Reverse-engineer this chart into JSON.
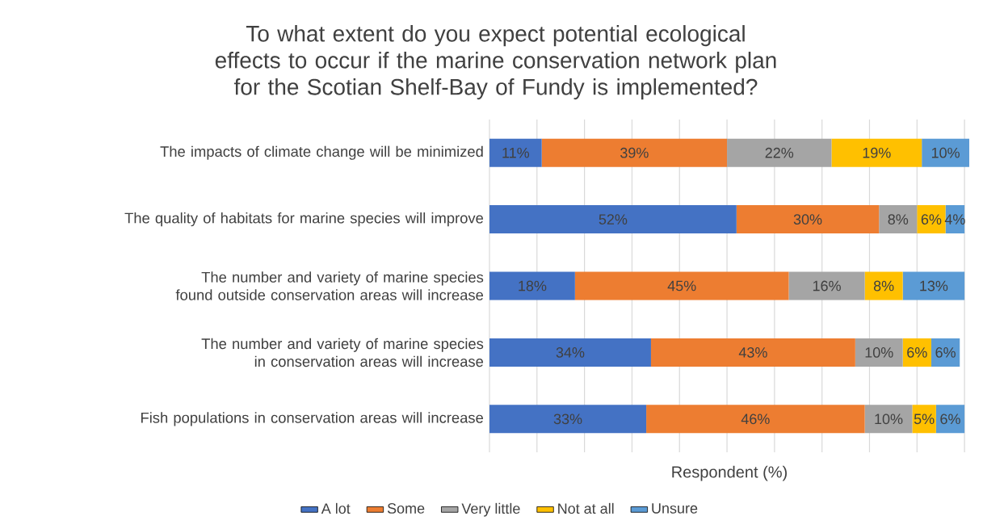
{
  "chart_data": {
    "type": "bar",
    "orientation": "horizontal",
    "stacked": true,
    "title": "To what extent do you expect potential ecological effects to occur if the marine conservation network plan for the Scotian Shelf-Bay of Fundy is implemented?",
    "xlabel": "Respondent (%)",
    "categories": [
      "The impacts of climate change will be minimized",
      "The quality of habitats for marine species will improve",
      "The number and variety of marine species found outside conservation areas will increase",
      "The number and variety of marine species in conservation areas will increase",
      "Fish populations in conservation areas will increase"
    ],
    "series": [
      {
        "name": "A lot",
        "color": "#4472c4",
        "values": [
          11,
          52,
          18,
          34,
          33
        ],
        "value_labels": [
          "11%",
          "52%",
          "18%",
          "34%",
          "33%"
        ]
      },
      {
        "name": "Some",
        "color": "#ed7d31",
        "values": [
          39,
          30,
          45,
          43,
          46
        ],
        "value_labels": [
          "39%",
          "30%",
          "45%",
          "43%",
          "46%"
        ]
      },
      {
        "name": "Very little",
        "color": "#a5a5a5",
        "values": [
          22,
          8,
          16,
          10,
          10
        ],
        "value_labels": [
          "22%",
          "8%",
          "16%",
          "10%",
          "10%"
        ]
      },
      {
        "name": "Not at all",
        "color": "#ffc000",
        "values": [
          19,
          6,
          8,
          6,
          5
        ],
        "value_labels": [
          "19%",
          "6%",
          "8%",
          "6%",
          "5%"
        ]
      },
      {
        "name": "Unsure",
        "color": "#5b9bd5",
        "values": [
          10,
          4,
          13,
          6,
          6
        ],
        "value_labels": [
          "10%",
          "4%",
          "13%",
          "6%",
          "6%"
        ]
      }
    ],
    "xlim": [
      0,
      101
    ],
    "xticks": [
      {
        "value": 0,
        "label": null
      },
      {
        "value": 10,
        "label": null
      },
      {
        "value": 20,
        "label": null
      },
      {
        "value": 30,
        "label": null
      },
      {
        "value": 40,
        "label": null
      },
      {
        "value": 50,
        "label": null
      },
      {
        "value": 60,
        "label": null
      },
      {
        "value": 70,
        "label": null
      },
      {
        "value": 80,
        "label": null
      },
      {
        "value": 90,
        "label": null
      },
      {
        "value": 100,
        "label": null
      }
    ],
    "tick_labels": "y",
    "grid": "x",
    "legend": "bottom"
  }
}
